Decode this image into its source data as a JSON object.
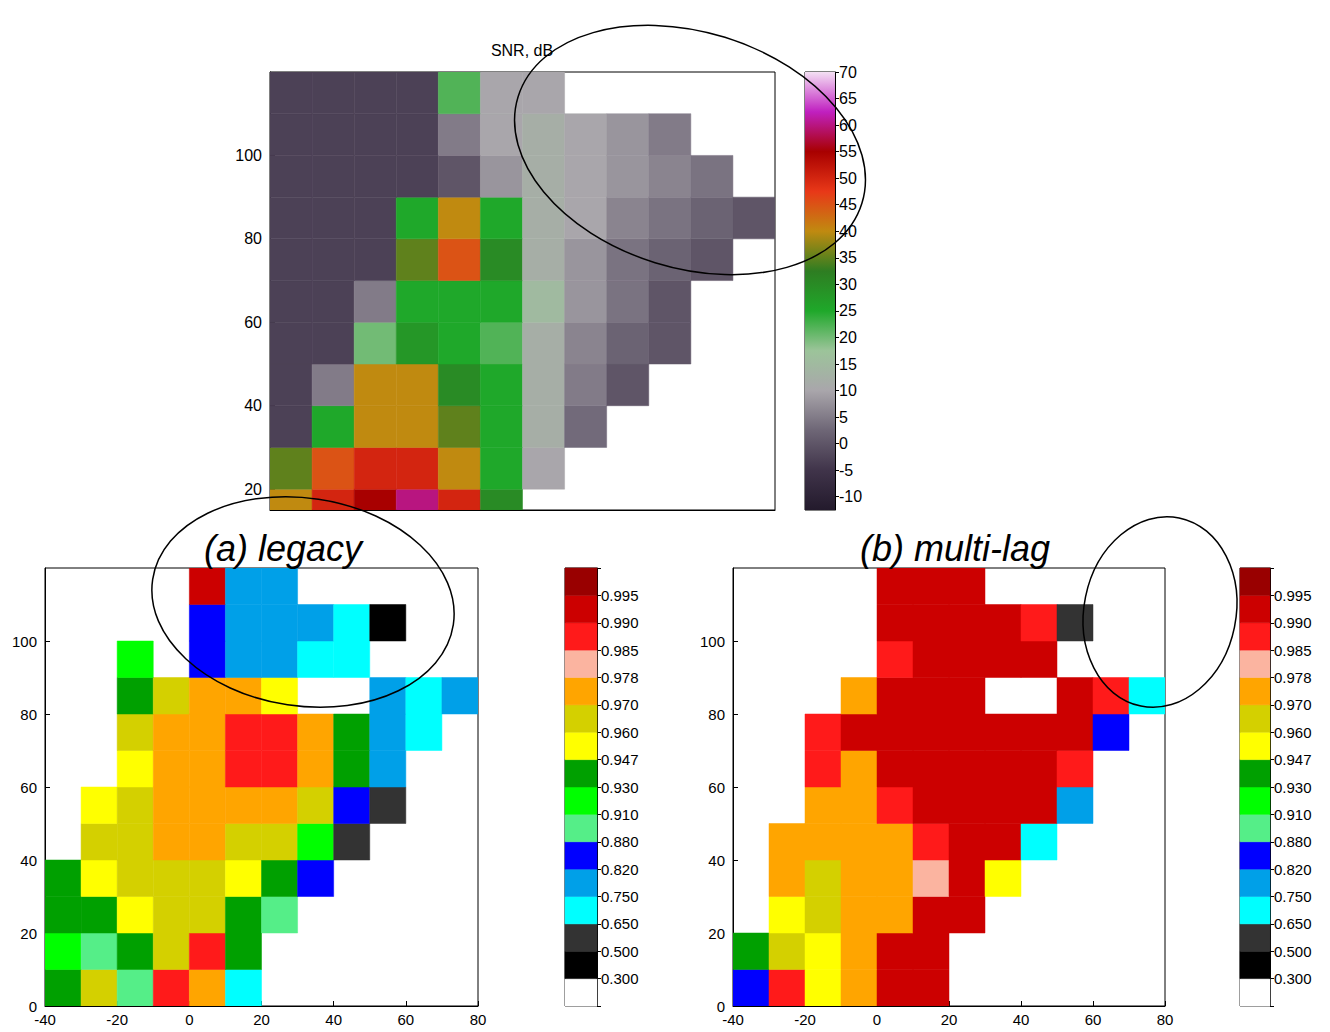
{
  "chart_data": [
    {
      "type": "heatmap",
      "title": "SNR, dB",
      "xlim": [
        -40,
        80
      ],
      "ylim": [
        15,
        120
      ],
      "yticks": [
        20,
        40,
        60,
        80,
        100
      ],
      "tick_labels": "y",
      "x_edges": [
        -40,
        -30,
        -20,
        -10,
        0,
        10,
        20,
        30,
        40,
        50,
        60,
        70,
        80
      ],
      "y_edges": [
        10,
        20,
        30,
        40,
        50,
        60,
        70,
        80,
        90,
        100,
        110,
        120
      ],
      "cells": [
        [
          40,
          50,
          55,
          60,
          50,
          30,
          null,
          null,
          null,
          null,
          null,
          null
        ],
        [
          35,
          45,
          50,
          50,
          40,
          25,
          10,
          null,
          null,
          null,
          null,
          null
        ],
        [
          -3,
          25,
          40,
          40,
          35,
          25,
          12,
          3,
          null,
          null,
          null,
          null
        ],
        [
          -3,
          5,
          40,
          40,
          30,
          25,
          12,
          5,
          0,
          null,
          null,
          null
        ],
        [
          -3,
          -3,
          20,
          28,
          25,
          22,
          12,
          6,
          2,
          0,
          null,
          null
        ],
        [
          -3,
          -3,
          5,
          25,
          25,
          25,
          15,
          8,
          4,
          0,
          null,
          null
        ],
        [
          -3,
          -3,
          -3,
          35,
          45,
          30,
          12,
          8,
          4,
          2,
          0,
          null
        ],
        [
          -3,
          -3,
          -3,
          25,
          40,
          25,
          12,
          10,
          6,
          4,
          2,
          0
        ],
        [
          -3,
          -3,
          -3,
          -3,
          0,
          8,
          12,
          10,
          8,
          6,
          4,
          null
        ],
        [
          -3,
          -3,
          -3,
          -3,
          5,
          10,
          12,
          10,
          8,
          5,
          null,
          null
        ],
        [
          -3,
          -3,
          -3,
          -3,
          22,
          10,
          10,
          null,
          null,
          null,
          null,
          null
        ]
      ],
      "colorbar": {
        "range": [
          -12.5,
          70
        ],
        "ticks": [
          -10,
          -5,
          0,
          5,
          10,
          15,
          20,
          25,
          30,
          35,
          40,
          45,
          50,
          55,
          60,
          65,
          70
        ],
        "colors": [
          "#231a2c",
          "#40344a",
          "#6e6676",
          "#a9a6ab",
          "#9cc49a",
          "#1fa82a",
          "#2e7d22",
          "#c08a10",
          "#e83818",
          "#a80000",
          "#c020c0",
          "#f4e0f4"
        ]
      }
    },
    {
      "type": "heatmap",
      "title": "(a) legacy",
      "xlim": [
        -40,
        80
      ],
      "ylim": [
        0,
        120
      ],
      "xticks": [
        -40,
        -20,
        0,
        20,
        40,
        60,
        80
      ],
      "yticks": [
        0,
        20,
        40,
        60,
        80,
        100
      ],
      "x_edges": [
        -40,
        -30,
        -20,
        -10,
        0,
        10,
        20,
        30,
        40,
        50,
        60,
        70,
        80
      ],
      "y_edges": [
        0,
        10,
        20,
        30,
        40,
        50,
        60,
        70,
        80,
        90,
        100,
        110,
        120
      ],
      "cells": [
        [
          0.94,
          0.965,
          0.895,
          0.987,
          0.974,
          0.7,
          null,
          null,
          null,
          null,
          null,
          null
        ],
        [
          0.92,
          0.895,
          0.94,
          0.965,
          0.987,
          0.94,
          null,
          null,
          null,
          null,
          null,
          null
        ],
        [
          0.94,
          0.94,
          0.955,
          0.965,
          0.965,
          0.94,
          0.895,
          null,
          null,
          null,
          null,
          null
        ],
        [
          0.94,
          0.955,
          0.965,
          0.965,
          0.965,
          0.955,
          0.94,
          0.85,
          null,
          null,
          null,
          null
        ],
        [
          null,
          0.965,
          0.965,
          0.974,
          0.974,
          0.965,
          0.965,
          0.92,
          0.58,
          null,
          null,
          null
        ],
        [
          null,
          0.955,
          0.965,
          0.974,
          0.974,
          0.974,
          0.974,
          0.965,
          0.85,
          0.58,
          null,
          null
        ],
        [
          null,
          null,
          0.955,
          0.974,
          0.974,
          0.987,
          0.987,
          0.974,
          0.94,
          0.78,
          null,
          null
        ],
        [
          null,
          null,
          0.965,
          0.974,
          0.974,
          0.987,
          0.987,
          0.974,
          0.94,
          0.78,
          0.7,
          null
        ],
        [
          null,
          null,
          0.94,
          0.965,
          0.974,
          0.974,
          0.955,
          null,
          null,
          0.78,
          0.7,
          0.78
        ],
        [
          null,
          null,
          0.92,
          null,
          0.85,
          0.78,
          0.78,
          0.7,
          0.7,
          null,
          null,
          null
        ],
        [
          null,
          null,
          null,
          null,
          0.85,
          0.78,
          0.78,
          0.78,
          0.7,
          0.4,
          null,
          null
        ],
        [
          null,
          null,
          null,
          null,
          0.992,
          0.78,
          0.78,
          null,
          null,
          null,
          null,
          null
        ]
      ],
      "colorbar": {
        "ticks": [
          {
            "value": 0.3,
            "label": "0.300"
          },
          {
            "value": 0.5,
            "label": "0.500"
          },
          {
            "value": 0.65,
            "label": "0.650"
          },
          {
            "value": 0.75,
            "label": "0.750"
          },
          {
            "value": 0.82,
            "label": "0.820"
          },
          {
            "value": 0.88,
            "label": "0.880"
          },
          {
            "value": 0.91,
            "label": "0.910"
          },
          {
            "value": 0.93,
            "label": "0.930"
          },
          0.947,
          {
            "value": 0.96,
            "label": "0.960"
          },
          {
            "value": 0.97,
            "label": "0.970"
          },
          0.978,
          0.985,
          {
            "value": 0.99,
            "label": "0.990"
          },
          0.995
        ],
        "colors": [
          "#ffffff",
          "#000000",
          "#333333",
          "#00ffff",
          "#00a0e8",
          "#0000ff",
          "#55ee88",
          "#00ff00",
          "#00a000",
          "#ffff00",
          "#d4d000",
          "#ffa500",
          "#fbb4a0",
          "#ff1a1a",
          "#cc0000",
          "#990000"
        ]
      }
    },
    {
      "type": "heatmap",
      "title": "(b) multi-lag",
      "xlim": [
        -40,
        80
      ],
      "ylim": [
        0,
        120
      ],
      "xticks": [
        -40,
        -20,
        0,
        20,
        40,
        60,
        80
      ],
      "yticks": [
        0,
        20,
        40,
        60,
        80,
        100
      ],
      "x_edges": [
        -40,
        -30,
        -20,
        -10,
        0,
        10,
        20,
        30,
        40,
        50,
        60,
        70,
        80
      ],
      "y_edges": [
        0,
        10,
        20,
        30,
        40,
        50,
        60,
        70,
        80,
        90,
        100,
        110,
        120
      ],
      "cells": [
        [
          0.85,
          0.987,
          0.955,
          0.974,
          0.992,
          0.992,
          null,
          null,
          null,
          null,
          null,
          null
        ],
        [
          0.94,
          0.965,
          0.955,
          0.974,
          0.992,
          0.992,
          null,
          null,
          null,
          null,
          null,
          null
        ],
        [
          null,
          0.955,
          0.965,
          0.974,
          0.974,
          0.992,
          0.992,
          null,
          null,
          null,
          null,
          null
        ],
        [
          null,
          0.974,
          0.965,
          0.974,
          0.974,
          0.982,
          0.992,
          0.955,
          null,
          null,
          null,
          null
        ],
        [
          null,
          0.974,
          0.974,
          0.974,
          0.974,
          0.987,
          0.992,
          0.992,
          0.7,
          null,
          null,
          null
        ],
        [
          null,
          null,
          0.974,
          0.974,
          0.987,
          0.992,
          0.992,
          0.992,
          0.992,
          0.78,
          null,
          null
        ],
        [
          null,
          null,
          0.987,
          0.974,
          0.992,
          0.992,
          0.992,
          0.992,
          0.992,
          0.987,
          null,
          null
        ],
        [
          null,
          null,
          0.987,
          0.992,
          0.992,
          0.992,
          0.992,
          0.992,
          0.992,
          0.992,
          0.85,
          null
        ],
        [
          null,
          null,
          null,
          0.974,
          0.992,
          0.992,
          0.992,
          null,
          null,
          0.992,
          0.987,
          0.7
        ],
        [
          null,
          null,
          null,
          null,
          0.987,
          0.992,
          0.992,
          0.992,
          0.992,
          null,
          null,
          null
        ],
        [
          null,
          null,
          null,
          null,
          0.992,
          0.992,
          0.992,
          0.992,
          0.987,
          0.58,
          null,
          null
        ],
        [
          null,
          null,
          null,
          null,
          0.992,
          0.992,
          0.992,
          null,
          null,
          null,
          null,
          null
        ]
      ],
      "colorbar": {
        "ticks": [
          {
            "value": 0.3,
            "label": "0.300"
          },
          {
            "value": 0.5,
            "label": "0.500"
          },
          {
            "value": 0.65,
            "label": "0.650"
          },
          {
            "value": 0.75,
            "label": "0.750"
          },
          {
            "value": 0.82,
            "label": "0.820"
          },
          {
            "value": 0.88,
            "label": "0.880"
          },
          {
            "value": 0.91,
            "label": "0.910"
          },
          {
            "value": 0.93,
            "label": "0.930"
          },
          0.947,
          {
            "value": 0.96,
            "label": "0.960"
          },
          {
            "value": 0.97,
            "label": "0.970"
          },
          0.978,
          0.985,
          {
            "value": 0.99,
            "label": "0.990"
          },
          0.995
        ],
        "colors": [
          "#ffffff",
          "#000000",
          "#333333",
          "#00ffff",
          "#00a0e8",
          "#0000ff",
          "#55ee88",
          "#00ff00",
          "#00a000",
          "#ffff00",
          "#d4d000",
          "#ffa500",
          "#fbb4a0",
          "#ff1a1a",
          "#cc0000",
          "#990000"
        ]
      }
    }
  ]
}
